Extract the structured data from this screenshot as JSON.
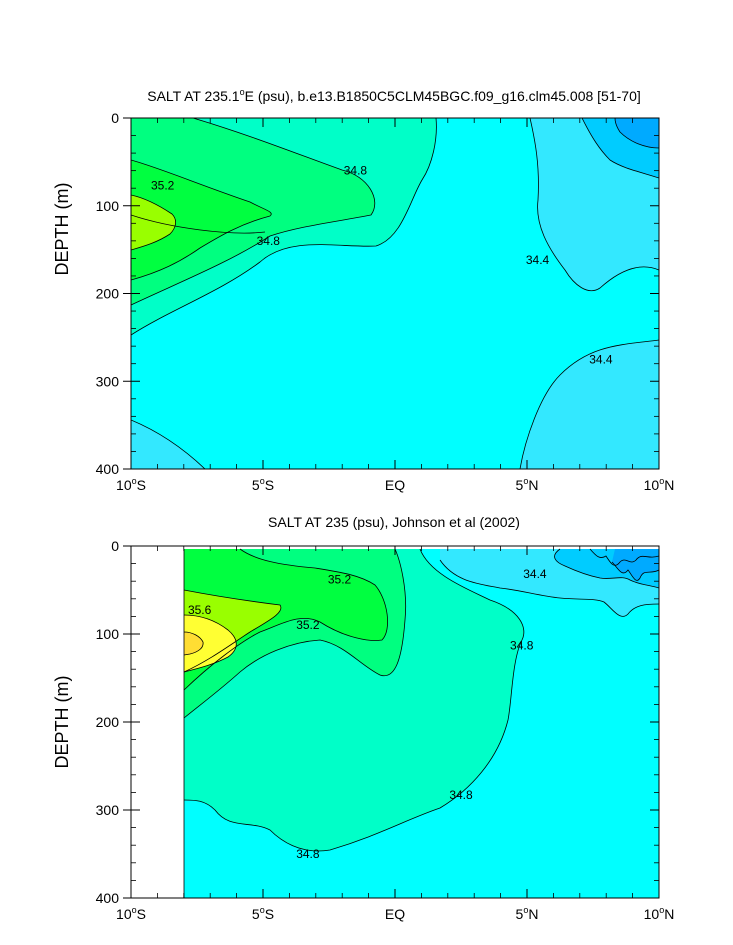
{
  "chart_data": [
    {
      "type": "contour",
      "title": "SALT AT 235.1°E (psu), b.e13.B1850C5CLM45BGC.f09_g16.clm45.008 [51-70]",
      "title_parts": {
        "pre": "SALT AT 235.1",
        "sup": "o",
        "post": "E (psu), b.e13.B1850C5CLM45BGC.f09_g16.clm45.008 [51-70]"
      },
      "xlabel": "",
      "ylabel": "DEPTH (m)",
      "xlim": [
        -10,
        10
      ],
      "ylim": [
        400,
        0
      ],
      "x_ticks": [
        {
          "value": -10,
          "num": "10",
          "unit": "S"
        },
        {
          "value": -5,
          "num": "5",
          "unit": "S"
        },
        {
          "value": 0,
          "num": "",
          "unit": "EQ"
        },
        {
          "value": 5,
          "num": "5",
          "unit": "N"
        },
        {
          "value": 10,
          "num": "10",
          "unit": "N"
        }
      ],
      "y_ticks": [
        {
          "value": 0,
          "label": "0"
        },
        {
          "value": 100,
          "label": "100"
        },
        {
          "value": 200,
          "label": "200"
        },
        {
          "value": 300,
          "label": "300"
        },
        {
          "value": 400,
          "label": "400"
        }
      ],
      "contour_labels": [
        {
          "text": "35.2",
          "lat": -8.8,
          "depth": 77
        },
        {
          "text": "34.8",
          "lat": -1.5,
          "depth": 60
        },
        {
          "text": "34.8",
          "lat": -4.8,
          "depth": 140
        },
        {
          "text": "34.4",
          "lat": 5.4,
          "depth": 162
        },
        {
          "text": "34.4",
          "lat": 7.8,
          "depth": 275
        }
      ]
    },
    {
      "type": "contour",
      "title": "SALT AT 235 (psu), Johnson et al (2002)",
      "xlabel": "",
      "ylabel": "DEPTH (m)",
      "xlim": [
        -10,
        10
      ],
      "ylim": [
        400,
        0
      ],
      "x_ticks": [
        {
          "value": -10,
          "num": "10",
          "unit": "S"
        },
        {
          "value": -5,
          "num": "5",
          "unit": "S"
        },
        {
          "value": 0,
          "num": "",
          "unit": "EQ"
        },
        {
          "value": 5,
          "num": "5",
          "unit": "N"
        },
        {
          "value": 10,
          "num": "10",
          "unit": "N"
        }
      ],
      "y_ticks": [
        {
          "value": 0,
          "label": "0"
        },
        {
          "value": 100,
          "label": "100"
        },
        {
          "value": 200,
          "label": "200"
        },
        {
          "value": 300,
          "label": "300"
        },
        {
          "value": 400,
          "label": "400"
        }
      ],
      "contour_labels": [
        {
          "text": "35.2",
          "lat": -2.1,
          "depth": 38
        },
        {
          "text": "35.6",
          "lat": -7.4,
          "depth": 73
        },
        {
          "text": "35.2",
          "lat": -3.3,
          "depth": 90
        },
        {
          "text": "34.8",
          "lat": 4.8,
          "depth": 113
        },
        {
          "text": "34.4",
          "lat": 5.3,
          "depth": 32
        },
        {
          "text": "34.8",
          "lat": 2.5,
          "depth": 283
        },
        {
          "text": "34.8",
          "lat": -3.3,
          "depth": 350
        }
      ]
    }
  ],
  "colors": {
    "s34_0": "#00aaff",
    "s34_2": "#00ccff",
    "s34_4": "#33e8ff",
    "s34_6": "#00ffff",
    "s34_8": "#00ffc8",
    "s35_0": "#00ff80",
    "s35_2": "#00ff40",
    "s35_4": "#99ff00",
    "s35_6": "#ffff33",
    "s35_8": "#ffdd33"
  }
}
